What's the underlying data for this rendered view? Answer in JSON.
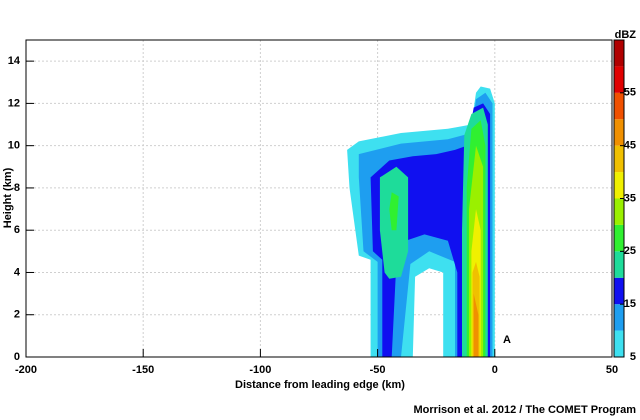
{
  "chart_data": {
    "type": "contourf",
    "x_label": "Distance from leading edge (km)",
    "y_label": "Height (km)",
    "annotation": "A",
    "credit": "Morrison et al. 2012 / The COMET Program",
    "xlim": [
      -200,
      50
    ],
    "xticks": [
      -200,
      -150,
      -100,
      -50,
      0,
      50
    ],
    "ylim": [
      0,
      15
    ],
    "yticks": [
      0,
      2,
      4,
      6,
      8,
      10,
      12,
      14
    ],
    "grid": true,
    "colorbar": {
      "label": "dBZ",
      "levels": [
        5,
        10,
        15,
        20,
        25,
        30,
        35,
        40,
        45,
        50,
        55,
        60,
        65
      ],
      "colors": [
        "#3ee0f0",
        "#1e9ef0",
        "#1010f0",
        "#1edc9a",
        "#30f030",
        "#9af000",
        "#f0f000",
        "#f0c000",
        "#f09000",
        "#f05000",
        "#e00000",
        "#b00000"
      ],
      "ticks": [
        5,
        15,
        25,
        35,
        45,
        55
      ]
    },
    "contours": [
      {
        "level": 5,
        "x": [
          -53,
          -53,
          -58,
          -62,
          -63,
          -58,
          -40,
          -20,
          -10,
          -8,
          -6,
          -2,
          0,
          0,
          -22,
          -22,
          -28,
          -34,
          -35
        ],
        "y": [
          0,
          4.6,
          4.8,
          8,
          9.8,
          10.2,
          10.6,
          10.8,
          11,
          12.5,
          12.8,
          12.7,
          12,
          0,
          0,
          4,
          4.2,
          3.8,
          0
        ]
      },
      {
        "level": 10,
        "x": [
          -50,
          -50,
          -56,
          -58,
          -58,
          -40,
          -20,
          -10,
          -8,
          -4,
          -1,
          -1,
          -17,
          -17,
          -28,
          -36,
          -40
        ],
        "y": [
          0,
          4.5,
          5,
          8.5,
          9.6,
          10.1,
          10.3,
          10.6,
          12.2,
          12.5,
          12,
          0,
          0,
          4.5,
          5,
          4.4,
          0
        ]
      },
      {
        "level": 15,
        "x": [
          -48,
          -48,
          -52,
          -53,
          -45,
          -35,
          -25,
          -17,
          -12,
          -9,
          -5,
          -2,
          -2,
          -16,
          -16,
          -20,
          -30,
          -38,
          -42,
          -44
        ],
        "y": [
          0,
          4.6,
          5,
          8.5,
          9.3,
          9.5,
          9.6,
          9.8,
          10,
          11.8,
          12,
          11.5,
          0,
          0,
          4,
          5.5,
          5.8,
          5.5,
          4.5,
          0
        ]
      },
      {
        "level": 20,
        "x": [
          -47,
          -49,
          -49,
          -42,
          -37,
          -37,
          -40,
          -45
        ],
        "y": [
          4,
          6,
          8.5,
          9,
          8.5,
          5,
          3.8,
          3.7
        ]
      },
      {
        "level": 20,
        "x": [
          -14,
          -14,
          -13,
          -10,
          -5,
          -3,
          -3
        ],
        "y": [
          0,
          6,
          10.5,
          11.5,
          11.8,
          11,
          0
        ]
      },
      {
        "level": 25,
        "x": [
          -44,
          -45,
          -44,
          -41,
          -42
        ],
        "y": [
          6,
          7,
          7.8,
          7.6,
          6
        ]
      },
      {
        "level": 25,
        "x": [
          -12,
          -12,
          -10,
          -6,
          -4,
          -4
        ],
        "y": [
          0,
          8,
          10.8,
          11.2,
          10,
          0
        ]
      },
      {
        "level": 30,
        "x": [
          -11,
          -11,
          -8,
          -5,
          -5
        ],
        "y": [
          0,
          7,
          10,
          9,
          0
        ]
      },
      {
        "level": 35,
        "x": [
          -10,
          -10,
          -8,
          -6,
          -6
        ],
        "y": [
          0,
          5,
          7,
          6,
          0
        ]
      },
      {
        "level": 40,
        "x": [
          -9.5,
          -9.5,
          -8,
          -6.5,
          -6.5
        ],
        "y": [
          0,
          4,
          4.5,
          3.8,
          0
        ]
      },
      {
        "level": 45,
        "x": [
          -9,
          -9,
          -7,
          -7
        ],
        "y": [
          0,
          3,
          2,
          0
        ]
      }
    ]
  }
}
